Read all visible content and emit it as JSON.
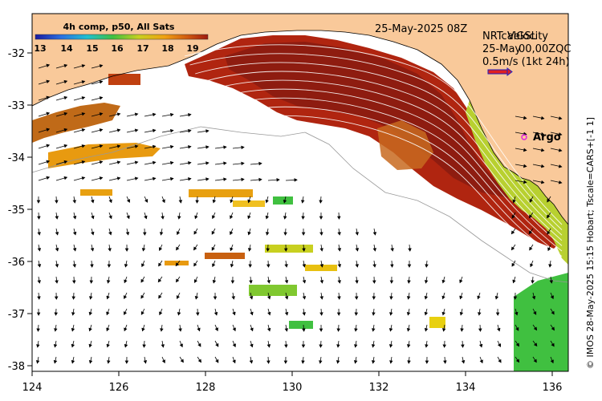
{
  "map": {
    "timestamp": "25-May-2025 08Z",
    "product_title": "4h comp, p50, All Sats",
    "colorbar_ticks": [
      "13",
      "14",
      "15",
      "16",
      "17",
      "18",
      "19"
    ],
    "velocity_title_a": "NRTcalGSL",
    "velocity_title_b": "Velocity",
    "velocity_date_a": "25-May",
    "velocity_date_b": "00,00ZQC",
    "velocity_scale_label": "0.5m/s (1kt 24h)",
    "argo_label": "Argo",
    "credit": "© IMOS 28-May-2025 15:15 Hobart; Tscale=CARS+[-1 1]",
    "x_ticks": [
      "124",
      "126",
      "128",
      "130",
      "132",
      "134",
      "136"
    ],
    "y_ticks": [
      "-32",
      "-33",
      "-34",
      "-35",
      "-36",
      "-37",
      "-38"
    ]
  },
  "colors": {
    "land": "#f9c99a",
    "ocean": "#ffffff",
    "argo": "#e020e0",
    "velocity_arrow": "#e02020",
    "velocity_arrow_outline": "#2020c0"
  },
  "icons": [
    "argo-float-icon",
    "velocity-scale-arrow-icon"
  ]
}
